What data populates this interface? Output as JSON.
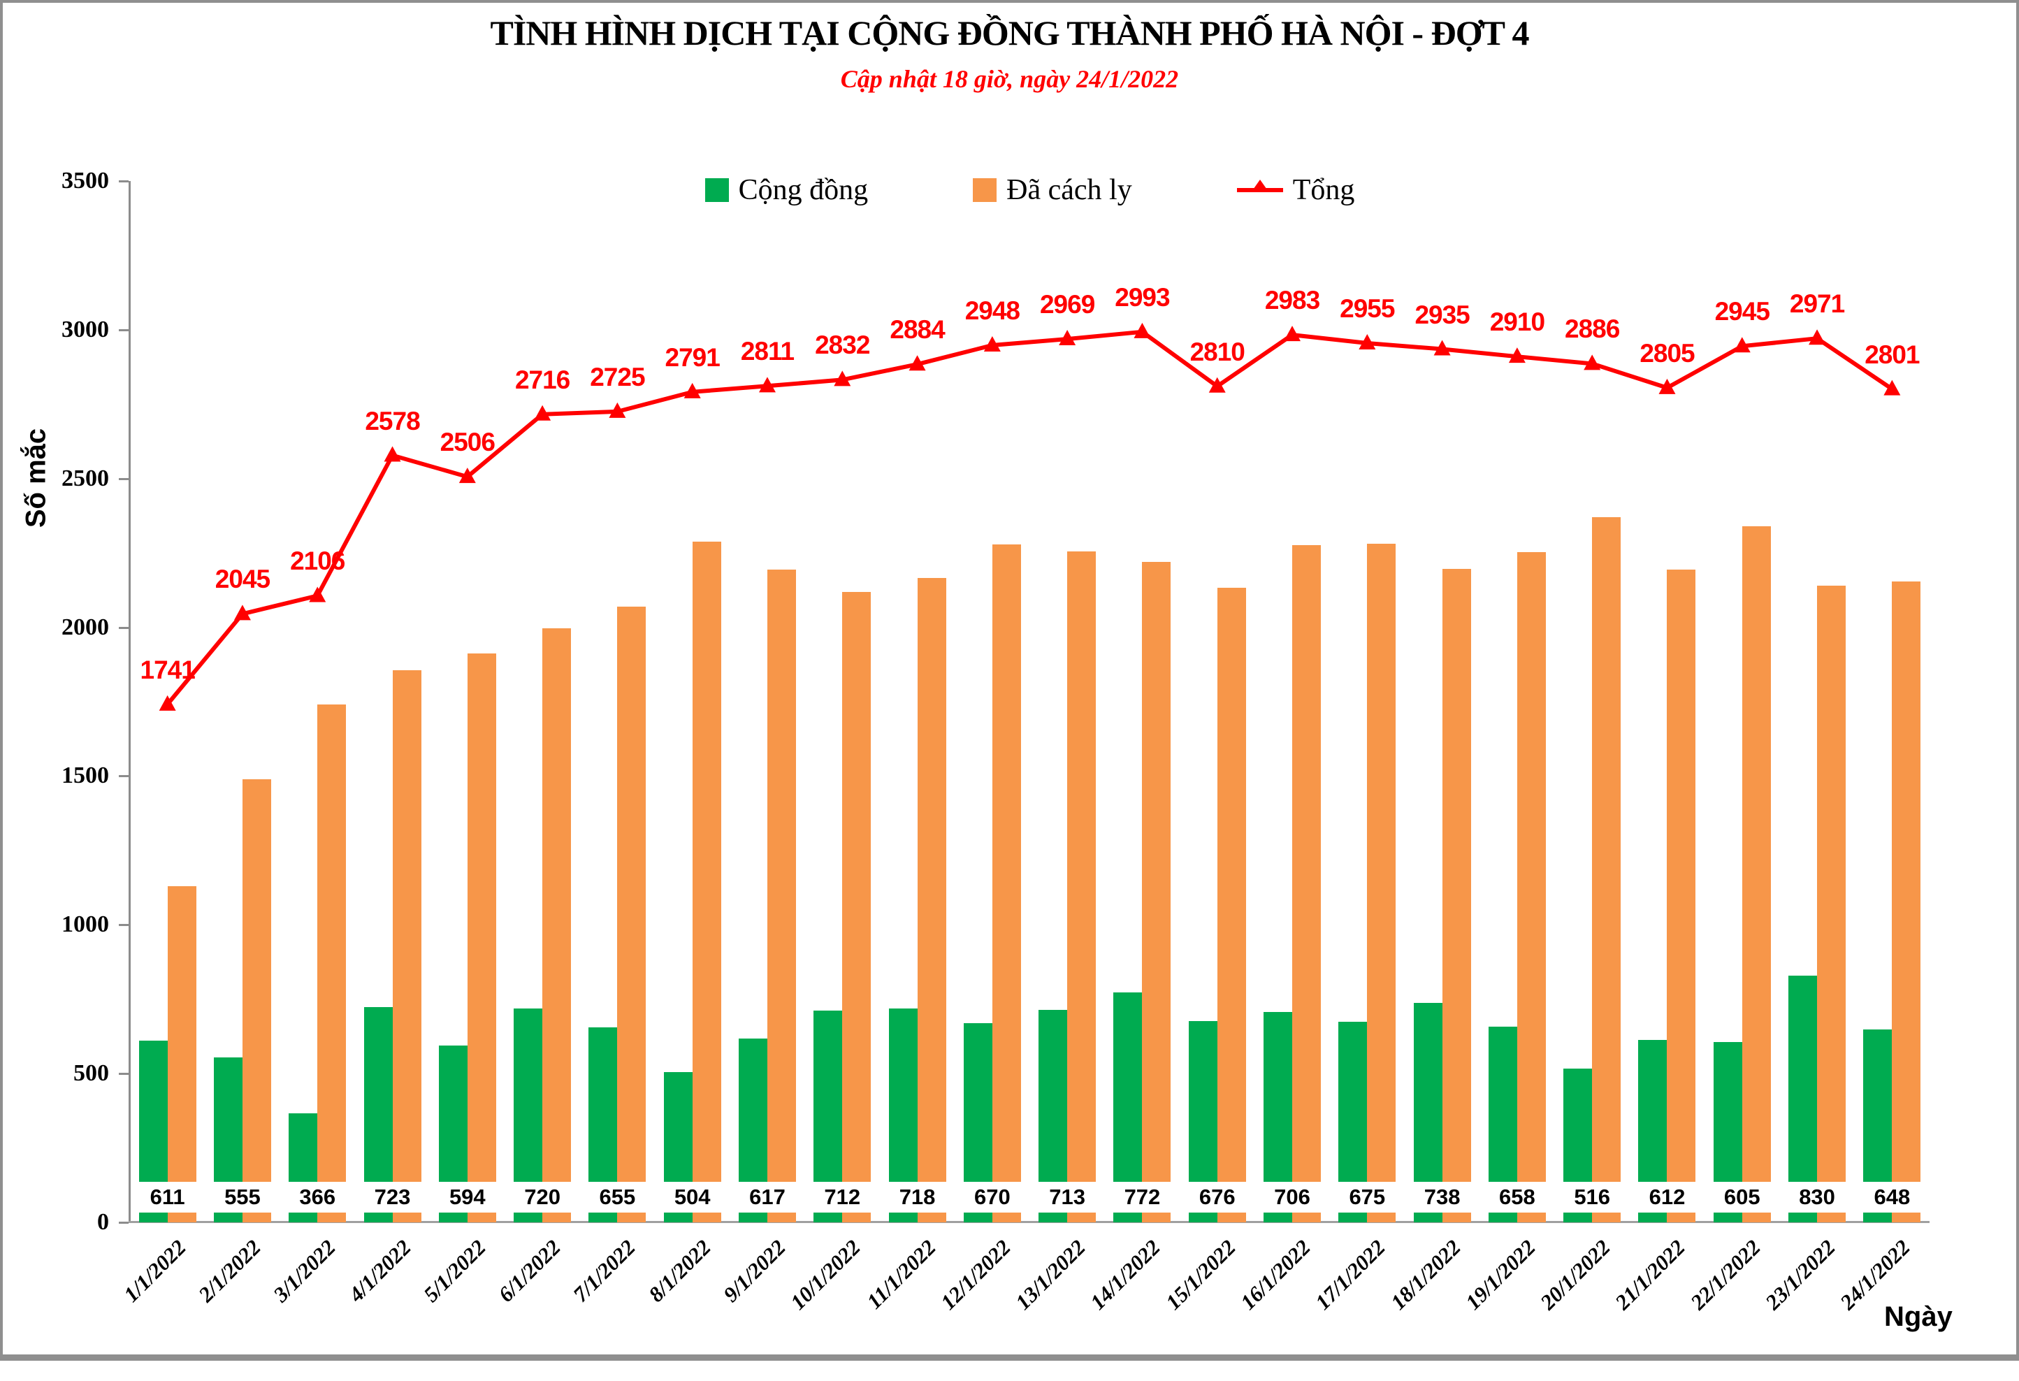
{
  "header": {
    "title": "TÌNH HÌNH DỊCH TẠI CỘNG ĐỒNG THÀNH PHỐ HÀ NỘI - ĐỢT 4",
    "subtitle": "Cập nhật 18 giờ, ngày  24/1/2022"
  },
  "axes": {
    "y_title": "Số mắc",
    "x_title": "Ngày",
    "y_ticks": [
      3500,
      3000,
      2500,
      2000,
      1500,
      1000,
      500,
      0
    ]
  },
  "colors": {
    "community_green": "#00AB50",
    "isolated_orange": "#F79649",
    "total_red": "#FF0000",
    "axis_gray": "#8C8C8C"
  },
  "chart_data": {
    "type": "combo",
    "title": "TÌNH HÌNH DỊCH TẠI CỘNG ĐỒNG THÀNH PHỐ HÀ NỘI - ĐỢT 4",
    "subtitle": "Cập nhật 18 giờ, ngày  24/1/2022",
    "categories": [
      "1/1/2022",
      "2/1/2022",
      "3/1/2022",
      "4/1/2022",
      "5/1/2022",
      "6/1/2022",
      "7/1/2022",
      "8/1/2022",
      "9/1/2022",
      "10/1/2022",
      "11/1/2022",
      "12/1/2022",
      "13/1/2022",
      "14/1/2022",
      "15/1/2022",
      "16/1/2022",
      "17/1/2022",
      "18/1/2022",
      "19/1/2022",
      "20/1/2022",
      "21/1/2022",
      "22/1/2022",
      "23/1/2022",
      "24/1/2022"
    ],
    "series": [
      {
        "name": "Cộng đồng",
        "type": "bar",
        "color": "#00AB50",
        "labels_shown": true,
        "values": [
          611,
          555,
          366,
          723,
          594,
          720,
          655,
          504,
          617,
          712,
          718,
          670,
          713,
          772,
          676,
          706,
          675,
          738,
          658,
          516,
          612,
          605,
          830,
          648
        ]
      },
      {
        "name": "Đã cách ly",
        "type": "bar",
        "color": "#F79649",
        "labels_shown": false,
        "values": [
          1130,
          1490,
          1740,
          1855,
          1912,
          1996,
          2070,
          2287,
          2194,
          2120,
          2166,
          2278,
          2256,
          2221,
          2134,
          2277,
          2280,
          2197,
          2252,
          2370,
          2193,
          2340,
          2141,
          2153
        ]
      },
      {
        "name": "Tổng",
        "type": "line",
        "color": "#FF0000",
        "marker": "triangle-up",
        "labels_shown": true,
        "values": [
          1741,
          2045,
          2106,
          2578,
          2506,
          2716,
          2725,
          2791,
          2811,
          2832,
          2884,
          2948,
          2969,
          2993,
          2810,
          2983,
          2955,
          2935,
          2910,
          2886,
          2805,
          2945,
          2971,
          2801
        ]
      }
    ],
    "xlabel": "Ngày",
    "ylabel": "Số mắc",
    "ylim": [
      0,
      3500
    ],
    "y_tick_step": 500,
    "grid": false,
    "legend_position": "top-center"
  }
}
